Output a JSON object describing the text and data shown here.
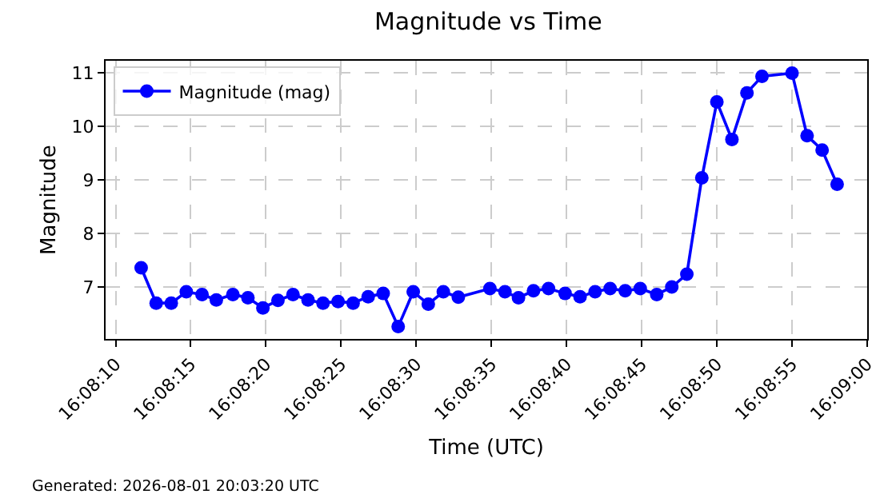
{
  "chart_data": {
    "type": "line",
    "title": "Magnitude vs Time",
    "xlabel": "Time (UTC)",
    "ylabel": "Magnitude",
    "annotations": [
      "Generated: 2026-08-01 20:03:20 UTC"
    ],
    "x": [
      16.136583,
      16.136861,
      16.137139,
      16.137417,
      16.137708,
      16.137972,
      16.138278,
      16.138556,
      16.138833,
      16.139111,
      16.139389,
      16.139667,
      16.139944,
      16.140222,
      16.1405,
      16.140778,
      16.141056,
      16.141333,
      16.141611,
      16.141889,
      16.142167,
      16.142444,
      16.143028,
      16.143306,
      16.143556,
      16.143833,
      16.144111,
      16.144417,
      16.144694,
      16.144972,
      16.14525,
      16.145528,
      16.145806,
      16.146111,
      16.146389,
      16.146667,
      16.146944,
      16.147222,
      16.1475,
      16.147778,
      16.148056,
      16.148611,
      16.148889,
      16.149167,
      16.149444
    ],
    "series": [
      {
        "name": "Magnitude (mag)",
        "color": "#0000ff",
        "values": [
          7.36,
          6.7,
          6.7,
          6.91,
          6.86,
          6.76,
          6.86,
          6.8,
          6.61,
          6.75,
          6.86,
          6.76,
          6.7,
          6.73,
          6.7,
          6.82,
          6.88,
          6.26,
          6.91,
          6.68,
          6.91,
          6.81,
          6.97,
          6.91,
          6.8,
          6.93,
          6.97,
          6.88,
          6.82,
          6.91,
          6.97,
          6.93,
          6.97,
          6.86,
          7.0,
          7.24,
          9.04,
          10.46,
          9.76,
          10.63,
          10.94,
          11.0,
          9.83,
          9.56,
          8.92
        ]
      }
    ],
    "xlim": [
      16.135926,
      16.15
    ],
    "xticks": [
      {
        "value": 16.136111,
        "label": "16:08:10"
      },
      {
        "value": 16.1375,
        "label": "16:08:15"
      },
      {
        "value": 16.138889,
        "label": "16:08:20"
      },
      {
        "value": 16.140278,
        "label": "16:08:25"
      },
      {
        "value": 16.141667,
        "label": "16:08:30"
      },
      {
        "value": 16.143056,
        "label": "16:08:35"
      },
      {
        "value": 16.144444,
        "label": "16:08:40"
      },
      {
        "value": 16.145833,
        "label": "16:08:45"
      },
      {
        "value": 16.147222,
        "label": "16:08:50"
      },
      {
        "value": 16.148611,
        "label": "16:08:55"
      },
      {
        "value": 16.15,
        "label": "16:09:00"
      }
    ],
    "ylim": [
      6.03,
      11.23
    ],
    "yticks": [
      7,
      8,
      9,
      10,
      11
    ],
    "grid": true,
    "legend": "top left",
    "marker": "circle",
    "line_style": "solid"
  }
}
